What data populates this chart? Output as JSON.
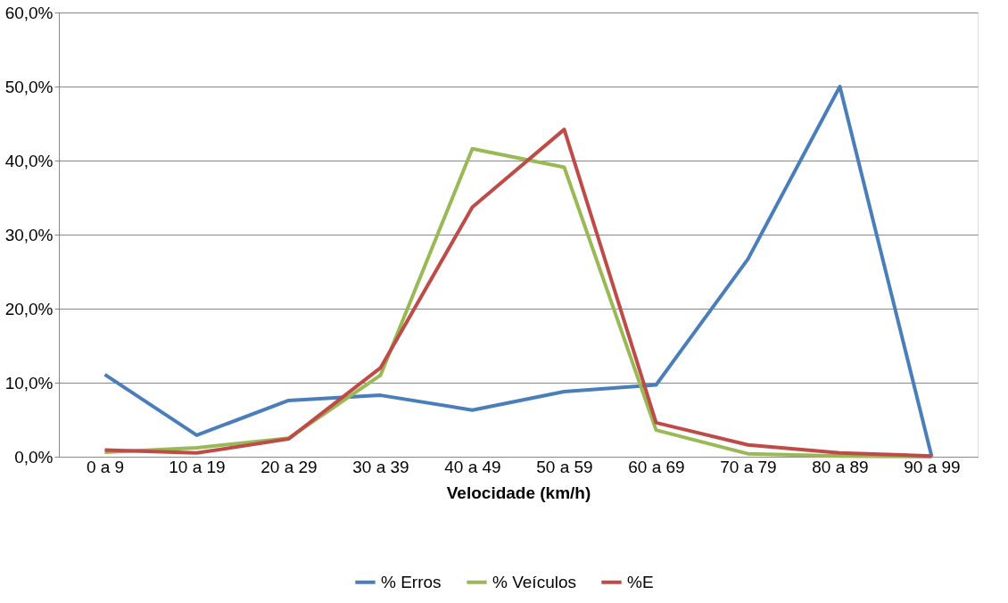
{
  "chart_data": {
    "type": "line",
    "xlabel": "Velocidade (km/h)",
    "categories": [
      "0 a 9",
      "10 a 19",
      "20 a 29",
      "30 a 39",
      "40 a 49",
      "50 a 59",
      "60 a 69",
      "70 a 79",
      "80 a 89",
      "90 a 99"
    ],
    "series": [
      {
        "name": "% Erros",
        "color": "#4a7ebb",
        "values": [
          11.1,
          2.9,
          7.6,
          8.3,
          6.3,
          8.8,
          9.7,
          26.7,
          50.0,
          0.0
        ]
      },
      {
        "name": "% Veículos",
        "color": "#98b954",
        "values": [
          0.6,
          1.2,
          2.5,
          11.0,
          41.6,
          39.1,
          3.6,
          0.4,
          0.1,
          0.0
        ]
      },
      {
        "name": "%E",
        "color": "#be4b48",
        "values": [
          0.9,
          0.5,
          2.4,
          12.0,
          33.7,
          44.2,
          4.6,
          1.6,
          0.5,
          0.1
        ]
      }
    ],
    "ylim": [
      0,
      60
    ],
    "yticks": [
      {
        "value": 0,
        "label": "0,0%"
      },
      {
        "value": 10,
        "label": "10,0%"
      },
      {
        "value": 20,
        "label": "20,0%"
      },
      {
        "value": 30,
        "label": "30,0%"
      },
      {
        "value": 40,
        "label": "40,0%"
      },
      {
        "value": 50,
        "label": "50,0%"
      },
      {
        "value": 60,
        "label": "60,0%"
      }
    ],
    "grid": "y",
    "legend": "bottom",
    "marker": "none",
    "line_style": "solid"
  }
}
